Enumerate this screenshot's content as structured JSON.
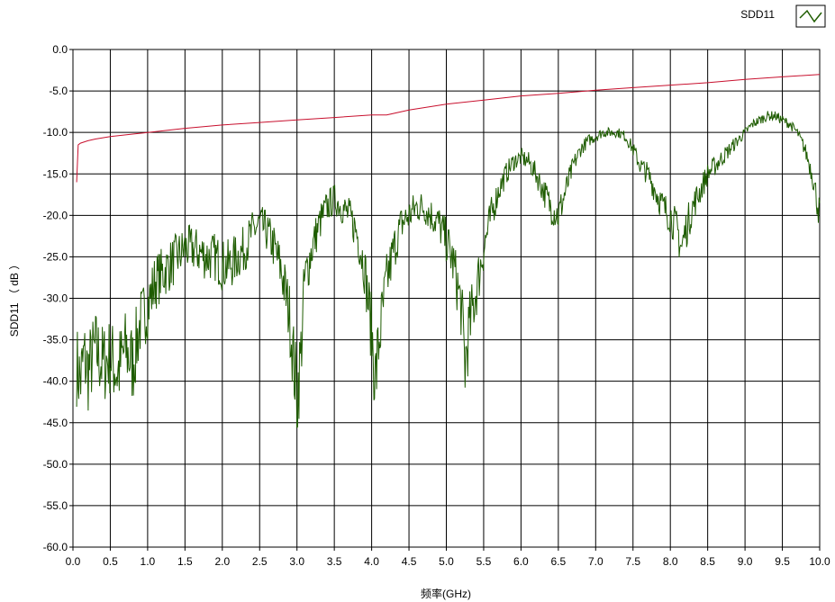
{
  "chart_data": {
    "type": "line",
    "title": "",
    "xlabel": "频率(GHz)",
    "ylabel": "SDD11 （ dB ）",
    "xlim": [
      0.0,
      10.0
    ],
    "ylim": [
      -60.0,
      0.0
    ],
    "x_ticks": [
      0.0,
      0.5,
      1.0,
      1.5,
      2.0,
      2.5,
      3.0,
      3.5,
      4.0,
      4.5,
      5.0,
      5.5,
      6.0,
      6.5,
      7.0,
      7.5,
      8.0,
      8.5,
      9.0,
      9.5,
      10.0
    ],
    "y_ticks": [
      0.0,
      -5.0,
      -10.0,
      -15.0,
      -20.0,
      -25.0,
      -30.0,
      -35.0,
      -40.0,
      -45.0,
      -50.0,
      -55.0,
      -60.0
    ],
    "x_tick_labels": [
      "0.0",
      "0.5",
      "1.0",
      "1.5",
      "2.0",
      "2.5",
      "3.0",
      "3.5",
      "4.0",
      "4.5",
      "5.0",
      "5.5",
      "6.0",
      "6.5",
      "7.0",
      "7.5",
      "8.0",
      "8.5",
      "9.0",
      "9.5",
      "10.0"
    ],
    "y_tick_labels": [
      "0.0",
      "-5.0",
      "-10.0",
      "-15.0",
      "-20.0",
      "-25.0",
      "-30.0",
      "-35.0",
      "-40.0",
      "-45.0",
      "-50.0",
      "-55.0",
      "-60.0"
    ],
    "grid": true,
    "legend": {
      "position": "top-right",
      "entries": [
        "SDD11"
      ]
    },
    "series": [
      {
        "name": "SDD11",
        "color": "#1e5c00",
        "noisy": true,
        "x": [
          0.05,
          0.1,
          0.15,
          0.2,
          0.3,
          0.4,
          0.5,
          0.6,
          0.7,
          0.8,
          0.9,
          1.0,
          1.1,
          1.2,
          1.3,
          1.4,
          1.5,
          1.6,
          1.7,
          1.8,
          1.9,
          2.0,
          2.1,
          2.2,
          2.3,
          2.4,
          2.5,
          2.6,
          2.7,
          2.8,
          2.9,
          3.0,
          3.05,
          3.1,
          3.2,
          3.3,
          3.4,
          3.5,
          3.6,
          3.7,
          3.8,
          3.9,
          4.0,
          4.05,
          4.1,
          4.2,
          4.3,
          4.4,
          4.5,
          4.6,
          4.7,
          4.8,
          4.9,
          5.0,
          5.1,
          5.2,
          5.25,
          5.3,
          5.4,
          5.5,
          5.6,
          5.7,
          5.8,
          5.9,
          6.0,
          6.1,
          6.2,
          6.3,
          6.4,
          6.5,
          6.6,
          6.7,
          6.8,
          6.9,
          7.0,
          7.1,
          7.2,
          7.3,
          7.4,
          7.5,
          7.6,
          7.7,
          7.8,
          7.9,
          8.0,
          8.1,
          8.15,
          8.2,
          8.3,
          8.4,
          8.5,
          8.6,
          8.7,
          8.8,
          8.9,
          9.0,
          9.1,
          9.2,
          9.3,
          9.4,
          9.5,
          9.6,
          9.7,
          9.8,
          9.9,
          10.0
        ],
        "y": [
          -38,
          -40,
          -37,
          -39,
          -36,
          -38,
          -37,
          -39,
          -36,
          -38,
          -33,
          -31,
          -28,
          -27,
          -26,
          -25,
          -24,
          -24,
          -24.5,
          -25,
          -25,
          -26,
          -26,
          -25,
          -24,
          -22,
          -21,
          -22,
          -24,
          -27,
          -32,
          -42,
          -37,
          -28,
          -24,
          -21,
          -19,
          -18,
          -19,
          -20,
          -22,
          -26,
          -34,
          -40,
          -35,
          -28,
          -24,
          -21,
          -20,
          -19,
          -19,
          -20,
          -21,
          -23,
          -26,
          -31,
          -38,
          -34,
          -29,
          -24,
          -20,
          -17,
          -15,
          -13.5,
          -13,
          -13.5,
          -15,
          -17,
          -19,
          -20,
          -17,
          -14,
          -12,
          -11,
          -10.5,
          -10,
          -10,
          -10,
          -10.5,
          -12,
          -14,
          -15,
          -17,
          -19,
          -20,
          -22,
          -24,
          -22,
          -19,
          -17,
          -15,
          -14,
          -13,
          -12,
          -11,
          -10,
          -9,
          -8.5,
          -8,
          -8,
          -8.5,
          -9,
          -10,
          -12,
          -15,
          -20
        ]
      },
      {
        "name": "",
        "color": "#c8102e",
        "noisy": false,
        "x": [
          0.05,
          0.07,
          0.1,
          0.2,
          0.3,
          0.5,
          0.8,
          1.0,
          1.5,
          2.0,
          2.5,
          3.0,
          3.5,
          4.0,
          4.2,
          4.5,
          5.0,
          5.5,
          6.0,
          6.5,
          7.0,
          7.5,
          8.0,
          8.5,
          9.0,
          9.5,
          10.0
        ],
        "y": [
          -16,
          -11.5,
          -11.3,
          -11,
          -10.8,
          -10.5,
          -10.2,
          -10,
          -9.5,
          -9.1,
          -8.8,
          -8.5,
          -8.2,
          -7.9,
          -7.9,
          -7.3,
          -6.6,
          -6.1,
          -5.6,
          -5.3,
          -4.9,
          -4.6,
          -4.3,
          -4.0,
          -3.6,
          -3.3,
          -3.0
        ]
      }
    ]
  }
}
